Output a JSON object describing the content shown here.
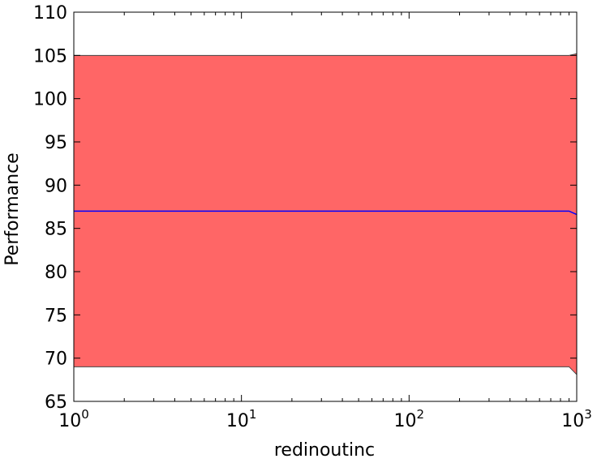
{
  "chart_data": {
    "type": "area",
    "title": "",
    "xlabel": "redinoutinc",
    "ylabel": "Performance",
    "x_scale": "log",
    "xlim": [
      1,
      1000
    ],
    "ylim": [
      65,
      110
    ],
    "x_ticks": [
      {
        "value": 1,
        "base": "10",
        "exp": "0"
      },
      {
        "value": 10,
        "base": "10",
        "exp": "1"
      },
      {
        "value": 100,
        "base": "10",
        "exp": "2"
      },
      {
        "value": 1000,
        "base": "10",
        "exp": "3"
      }
    ],
    "y_ticks": [
      65,
      70,
      75,
      80,
      85,
      90,
      95,
      100,
      105,
      110
    ],
    "grid": false,
    "legend": "none",
    "series": [
      {
        "x": [
          1,
          2,
          5,
          10,
          20,
          50,
          100,
          200,
          500,
          900,
          1000
        ],
        "mean": [
          87,
          87,
          87,
          87,
          87,
          87,
          87,
          87,
          87,
          87,
          86.6
        ],
        "upper": [
          105,
          105,
          105,
          105,
          105,
          105,
          105,
          105,
          105,
          105,
          105.2
        ],
        "lower": [
          69,
          69,
          69,
          69,
          69,
          69,
          69,
          69,
          69,
          69,
          68.1
        ],
        "line_color": "#0000ff",
        "band_color": "#ff6666"
      }
    ]
  }
}
